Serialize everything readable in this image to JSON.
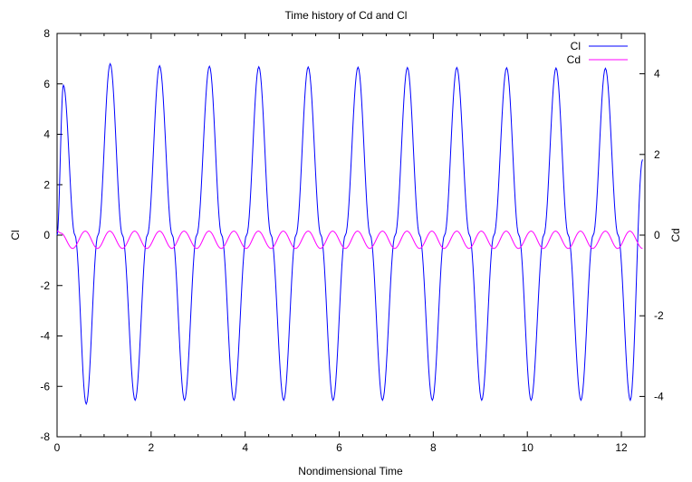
{
  "chart_data": {
    "type": "line",
    "title": "Time history of Cd and Cl",
    "xlabel": "Nondimensional Time",
    "ylabel_left": "Cl",
    "ylabel_right": "Cd",
    "xlim": [
      0,
      12.5
    ],
    "ylim_left": [
      -8,
      8
    ],
    "ylim_right": [
      -5,
      5
    ],
    "x_ticks": [
      "0",
      "2",
      "4",
      "6",
      "8",
      "10",
      "12"
    ],
    "y_left_ticks": [
      "8",
      "6",
      "4",
      "2",
      "0",
      "-2",
      "-4",
      "-6",
      "-8"
    ],
    "y_right_ticks": [
      "4",
      "2",
      "0",
      "-2",
      "-4"
    ],
    "grid": false,
    "legend_position": "top-right",
    "series": [
      {
        "name": "Cl",
        "axis": "left",
        "color": "#0000ff",
        "x": [
          0.0,
          0.135,
          0.38,
          0.62,
          0.87,
          1.13,
          1.39,
          1.66,
          1.92,
          2.18,
          2.45,
          2.71,
          2.97,
          3.24,
          3.5,
          3.76,
          4.03,
          4.29,
          4.55,
          4.82,
          5.08,
          5.34,
          5.61,
          5.87,
          6.13,
          6.4,
          6.66,
          6.92,
          7.19,
          7.45,
          7.71,
          7.98,
          8.24,
          8.5,
          8.77,
          9.03,
          9.29,
          9.56,
          9.82,
          10.08,
          10.35,
          10.61,
          10.87,
          11.14,
          11.4,
          11.66,
          11.93,
          12.19,
          12.45
        ],
        "y": [
          0.0,
          5.95,
          0.0,
          -6.7,
          0.0,
          6.8,
          0.0,
          -6.55,
          0.0,
          6.72,
          0.0,
          -6.55,
          0.0,
          6.7,
          0.0,
          -6.55,
          0.0,
          6.68,
          0.0,
          -6.55,
          0.0,
          6.67,
          0.0,
          -6.55,
          0.0,
          6.66,
          0.0,
          -6.55,
          0.0,
          6.65,
          0.0,
          -6.55,
          0.0,
          6.65,
          0.0,
          -6.55,
          0.0,
          6.64,
          0.0,
          -6.55,
          0.0,
          6.63,
          0.0,
          -6.55,
          0.0,
          6.62,
          0.0,
          -6.55,
          3.0
        ]
      },
      {
        "name": "Cd",
        "axis": "right",
        "color": "#ff00ff",
        "x": [
          0.0,
          0.08,
          0.33,
          0.6,
          0.86,
          1.12,
          1.39,
          1.65,
          1.91,
          2.18,
          2.44,
          2.7,
          2.97,
          3.23,
          3.49,
          3.76,
          4.02,
          4.28,
          4.55,
          4.81,
          5.07,
          5.34,
          5.6,
          5.86,
          6.13,
          6.39,
          6.65,
          6.92,
          7.18,
          7.44,
          7.71,
          7.97,
          8.23,
          8.5,
          8.76,
          9.02,
          9.29,
          9.55,
          9.81,
          10.08,
          10.34,
          10.6,
          10.87,
          11.13,
          11.39,
          11.66,
          11.92,
          12.18,
          12.45
        ],
        "y": [
          0.1,
          0.05,
          -0.33,
          0.1,
          -0.33,
          0.1,
          -0.33,
          0.1,
          -0.33,
          0.1,
          -0.33,
          0.1,
          -0.33,
          0.1,
          -0.33,
          0.1,
          -0.33,
          0.1,
          -0.33,
          0.1,
          -0.33,
          0.1,
          -0.33,
          0.1,
          -0.33,
          0.1,
          -0.33,
          0.1,
          -0.33,
          0.1,
          -0.33,
          0.1,
          -0.33,
          0.1,
          -0.33,
          0.1,
          -0.33,
          0.1,
          -0.33,
          0.1,
          -0.33,
          0.1,
          -0.33,
          0.1,
          -0.33,
          0.1,
          -0.33,
          0.1,
          -0.33
        ]
      }
    ]
  }
}
